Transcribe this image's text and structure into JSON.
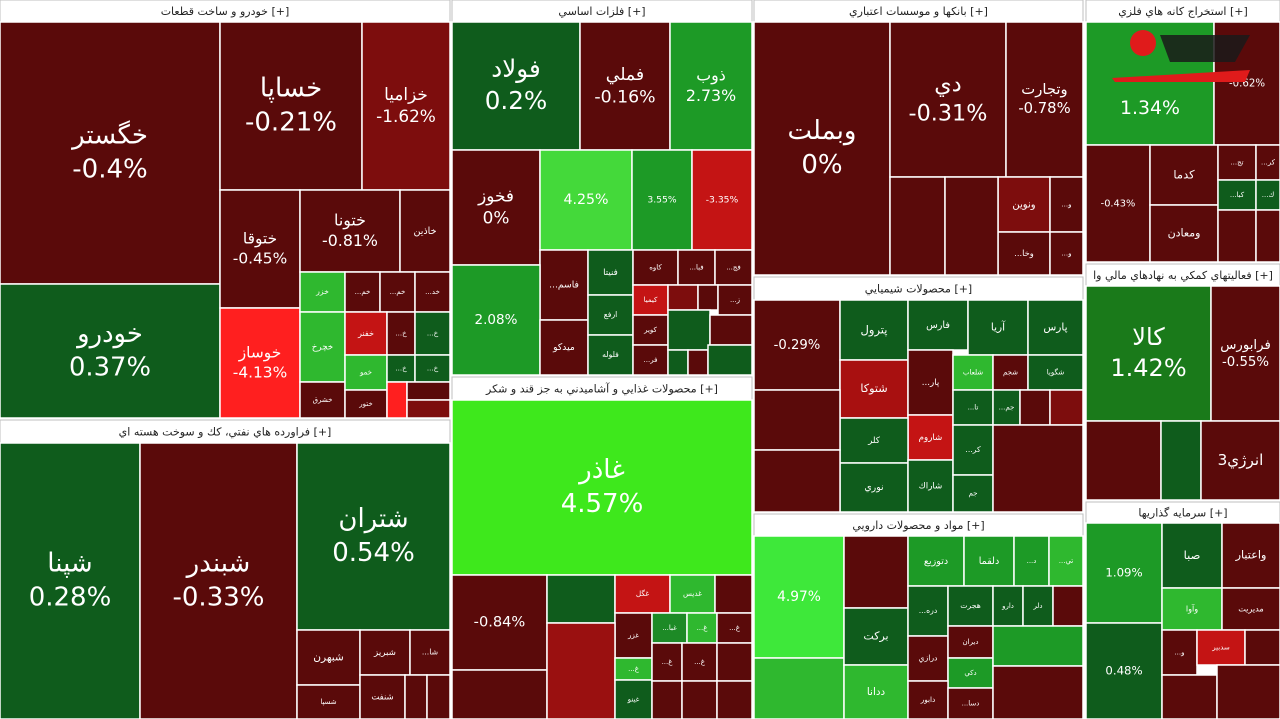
{
  "sectors": [
    {
      "title": "خودرو و ساخت قطعات [+]",
      "tiles": [
        {
          "name": "خگستر",
          "change": "-0.4%",
          "color": "#5a0a0a"
        },
        {
          "name": "خودرو",
          "change": "0.37%",
          "color": "#0f5c1c"
        },
        {
          "name": "خساپا",
          "change": "-0.21%",
          "color": "#5a0a0a"
        },
        {
          "name": "خزامیا",
          "change": "-1.62%",
          "color": "#7d0d0d"
        },
        {
          "name": "ختوقا",
          "change": "-0.45%",
          "color": "#5a0a0a"
        },
        {
          "name": "ختونا",
          "change": "-0.81%",
          "color": "#5a0a0a"
        },
        {
          "name": "خاذين",
          "color": "#5a0a0a"
        },
        {
          "name": "خوساز",
          "change": "-4.13%",
          "color": "#ff1f1f"
        },
        {
          "name": "خزر",
          "color": "#2fb82f"
        },
        {
          "name": "...خم",
          "color": "#5a0a0a"
        },
        {
          "name": "...خم",
          "color": "#5a0a0a"
        },
        {
          "name": "...خد",
          "color": "#5a0a0a"
        },
        {
          "name": "خچرخ",
          "color": "#2fb82f"
        },
        {
          "name": "خشرق",
          "color": "#5a0a0a"
        },
        {
          "name": "خفنر",
          "color": "#c41414"
        },
        {
          "name": "...خ",
          "color": "#5a0a0a"
        },
        {
          "name": "...خ",
          "color": "#0f5c1c"
        },
        {
          "name": "خمو",
          "color": "#2fb82f"
        },
        {
          "name": "...خ",
          "color": "#0f5c1c"
        },
        {
          "name": "...خ",
          "color": "#0f5c1c"
        },
        {
          "name": "ختور",
          "color": "#5a0a0a"
        },
        {
          "color": "#ff1f1f"
        },
        {
          "color": "#5a0a0a"
        },
        {
          "color": "#7d0d0d"
        }
      ]
    },
    {
      "title": "فراورده هاي نفتي، كك و سوخت هسته اي [+]",
      "tiles": [
        {
          "name": "شپنا",
          "change": "0.28%",
          "color": "#0f5c1c"
        },
        {
          "name": "شبندر",
          "change": "-0.33%",
          "color": "#5a0a0a"
        },
        {
          "name": "شتران",
          "change": "0.54%",
          "color": "#0f5c1c"
        },
        {
          "name": "شبهرن",
          "color": "#5a0a0a"
        },
        {
          "name": "شبريز",
          "color": "#5a0a0a"
        },
        {
          "name": "...شا",
          "color": "#5a0a0a"
        },
        {
          "name": "شسپا",
          "color": "#5a0a0a"
        },
        {
          "name": "شنفت",
          "color": "#5a0a0a"
        },
        {
          "color": "#5a0a0a"
        },
        {
          "color": "#5a0a0a"
        }
      ]
    },
    {
      "title": "فلزات اساسي [+]",
      "tiles": [
        {
          "name": "فولاد",
          "change": "0.2%",
          "color": "#0f5c1c"
        },
        {
          "name": "فملي",
          "change": "-0.16%",
          "color": "#5a0a0a"
        },
        {
          "name": "ذوب",
          "change": "2.73%",
          "color": "#1d9a26"
        },
        {
          "name": "فخوز",
          "change": "0%",
          "color": "#5a0a0a"
        },
        {
          "change": "4.25%",
          "color": "#44d93a"
        },
        {
          "change": "3.55%",
          "color": "#1d9a26"
        },
        {
          "change": "-3.35%",
          "color": "#c41414"
        },
        {
          "name": "...فاسم",
          "color": "#5a0a0a"
        },
        {
          "name": "فنيتا",
          "color": "#0f5c1c"
        },
        {
          "name": "كاوه",
          "color": "#5a0a0a"
        },
        {
          "name": "...فبا",
          "color": "#5a0a0a"
        },
        {
          "name": "...فج",
          "color": "#5a0a0a"
        },
        {
          "change": "2.08%",
          "color": "#1d9a26"
        },
        {
          "name": "ميدكو",
          "color": "#5a0a0a"
        },
        {
          "name": "ارفع",
          "color": "#0f5c1c"
        },
        {
          "name": "فلوله",
          "color": "#0f5c1c"
        },
        {
          "name": "كيميا",
          "color": "#c41414"
        },
        {
          "name": "كوير",
          "color": "#5a0a0a"
        },
        {
          "name": "...فر",
          "color": "#5a0a0a"
        },
        {
          "color": "#7d0d0d"
        },
        {
          "color": "#5a0a0a"
        },
        {
          "name": "...ز",
          "color": "#5a0a0a"
        },
        {
          "color": "#0f5c1c"
        },
        {
          "color": "#5a0a0a"
        },
        {
          "color": "#0f5c1c"
        },
        {
          "color": "#5a0a0a"
        },
        {
          "color": "#0f5c1c"
        }
      ]
    },
    {
      "title": "محصولات غذايي و آشاميدني به جز قند و شكر [+]",
      "tiles": [
        {
          "name": "غاذر",
          "change": "4.57%",
          "color": "#3ee81c"
        },
        {
          "change": "-0.84%",
          "color": "#5a0a0a"
        },
        {
          "color": "#0f5c1c"
        },
        {
          "name": "غگل",
          "color": "#c41414"
        },
        {
          "name": "غديس",
          "color": "#2fb82f"
        },
        {
          "color": "#5a0a0a"
        },
        {
          "name": "غزر",
          "color": "#5a0a0a"
        },
        {
          "name": "...غبا",
          "color": "#1d8a26"
        },
        {
          "name": "...غ",
          "color": "#2fb82f"
        },
        {
          "name": "...غ",
          "color": "#5a0a0a"
        },
        {
          "color": "#5a0a0a"
        },
        {
          "color": "#9a1010"
        },
        {
          "name": "...غ",
          "color": "#2fb82f"
        },
        {
          "name": "غينو",
          "color": "#0f5c1c"
        },
        {
          "name": "...غ",
          "color": "#5a0a0a"
        },
        {
          "name": "...غ",
          "color": "#5a0a0a"
        },
        {
          "color": "#5a0a0a"
        },
        {
          "color": "#5a0a0a"
        },
        {
          "color": "#5a0a0a"
        },
        {
          "color": "#5a0a0a"
        }
      ]
    },
    {
      "title": "بانكها و موسسات اعتباري [+]",
      "tiles": [
        {
          "name": "وبملت",
          "change": "0%",
          "color": "#5a0a0a"
        },
        {
          "name": "دي",
          "change": "-0.31%",
          "color": "#5a0a0a"
        },
        {
          "name": "وتجارت",
          "change": "-0.78%",
          "color": "#5a0a0a"
        },
        {
          "name": "ونوين",
          "color": "#7d0d0d"
        },
        {
          "name": "...وخا",
          "color": "#5a0a0a"
        },
        {
          "color": "#5a0a0a"
        },
        {
          "color": "#5a0a0a"
        },
        {
          "name": "...و",
          "color": "#5a0a0a"
        },
        {
          "name": "...و",
          "color": "#5a0a0a"
        }
      ]
    },
    {
      "title": "محصولات شيميايي [+]",
      "tiles": [
        {
          "change": "-0.29%",
          "color": "#5a0a0a"
        },
        {
          "name": "پترول",
          "color": "#0f5c1c"
        },
        {
          "name": "فارس",
          "color": "#0f5c1c"
        },
        {
          "name": "آريا",
          "color": "#0f5c1c"
        },
        {
          "name": "پارس",
          "color": "#0f5c1c"
        },
        {
          "name": "شتوكا",
          "color": "#a81010"
        },
        {
          "name": "...پار",
          "color": "#5a0a0a"
        },
        {
          "name": "شلعاب",
          "color": "#2fb82f"
        },
        {
          "name": "شجم",
          "color": "#5a0a0a"
        },
        {
          "name": "شگويا",
          "color": "#0f5c1c"
        },
        {
          "name": "شاروم",
          "color": "#c41414"
        },
        {
          "name": "كلر",
          "color": "#0f5c1c"
        },
        {
          "name": "نوري",
          "color": "#0f5c1c"
        },
        {
          "name": "شاراك",
          "color": "#0f5c1c"
        },
        {
          "color": "#5a0a0a"
        },
        {
          "color": "#5a0a0a"
        },
        {
          "name": "...تا",
          "color": "#0f5c1c"
        },
        {
          "name": "...جم",
          "color": "#0f5c1c"
        },
        {
          "name": "...كر",
          "color": "#0f5c1c"
        },
        {
          "name": "جم",
          "color": "#0f5c1c"
        },
        {
          "color": "#5a0a0a"
        },
        {
          "color": "#7d0d0d"
        },
        {
          "color": "#5a0a0a"
        }
      ]
    },
    {
      "title": "مواد و محصولات دارويي [+]",
      "tiles": [
        {
          "change": "4.97%",
          "color": "#3ee83a"
        },
        {
          "color": "#2fb82f"
        },
        {
          "color": "#5a0a0a"
        },
        {
          "name": "بركت",
          "color": "#0f5c1c"
        },
        {
          "name": "ددانا",
          "color": "#2fb82f"
        },
        {
          "name": "دتوزيع",
          "color": "#1d9a26"
        },
        {
          "name": "دلقما",
          "color": "#1d9a26"
        },
        {
          "name": "...د",
          "color": "#1d9a26"
        },
        {
          "name": "...تي",
          "color": "#2fb82f"
        },
        {
          "name": "...دره",
          "color": "#0f5c1c"
        },
        {
          "name": "هجرت",
          "color": "#0f5c1c"
        },
        {
          "name": "دارو",
          "color": "#0f5c1c"
        },
        {
          "name": "دلر",
          "color": "#0f5c1c"
        },
        {
          "name": "درازي",
          "color": "#5a0a0a"
        },
        {
          "name": "ديران",
          "color": "#5a0a0a"
        },
        {
          "name": "دكي",
          "color": "#1d9a26"
        },
        {
          "name": "دابور",
          "color": "#5a0a0a"
        },
        {
          "name": "...دسا",
          "color": "#5a0a0a"
        },
        {
          "color": "#5a0a0a"
        },
        {
          "color": "#1d9a26"
        },
        {
          "color": "#5a0a0a"
        }
      ]
    },
    {
      "title": "استخراج كانه هاي فلزي [+]",
      "tiles": [
        {
          "change": "1.34%",
          "color": "#1d9a26"
        },
        {
          "change": "-0.62%",
          "color": "#5a0a0a"
        },
        {
          "change": "-0.43%",
          "color": "#5a0a0a"
        },
        {
          "name": "كدما",
          "color": "#5a0a0a"
        },
        {
          "name": "ومعادن",
          "color": "#5a0a0a"
        },
        {
          "name": "...تج",
          "color": "#5a0a0a"
        },
        {
          "name": "...كر",
          "color": "#5a0a0a"
        },
        {
          "name": "...كبا",
          "color": "#0f5c1c"
        },
        {
          "name": "...ك",
          "color": "#0f5c1c"
        },
        {
          "color": "#5a0a0a"
        },
        {
          "color": "#5a0a0a"
        }
      ]
    },
    {
      "title": "فعاليتهاي كمكي به نهادهاي مالي وا [+]",
      "tiles": [
        {
          "name": "كالا",
          "change": "1.42%",
          "color": "#1a7a1a"
        },
        {
          "name": "فرابورس",
          "change": "-0.55%",
          "color": "#5a0a0a"
        },
        {
          "color": "#5a0a0a"
        },
        {
          "color": "#0f5c1c"
        },
        {
          "name": "انرژي3",
          "color": "#5a0a0a"
        }
      ]
    },
    {
      "title": "سرمايه گذاريها [+]",
      "tiles": [
        {
          "change": "1.09%",
          "color": "#1d9a26"
        },
        {
          "change": "0.48%",
          "color": "#0f5c1c"
        },
        {
          "name": "صبا",
          "color": "#0f5c1c"
        },
        {
          "name": "واعتبار",
          "color": "#5a0a0a"
        },
        {
          "name": "وآوا",
          "color": "#2fb82f"
        },
        {
          "name": "مديريت",
          "color": "#5a0a0a"
        },
        {
          "name": "...و",
          "color": "#5a0a0a"
        },
        {
          "name": "سدبير",
          "color": "#c41414"
        },
        {
          "color": "#5a0a0a"
        },
        {
          "color": "#5a0a0a"
        },
        {
          "color": "#5a0a0a"
        }
      ]
    }
  ]
}
